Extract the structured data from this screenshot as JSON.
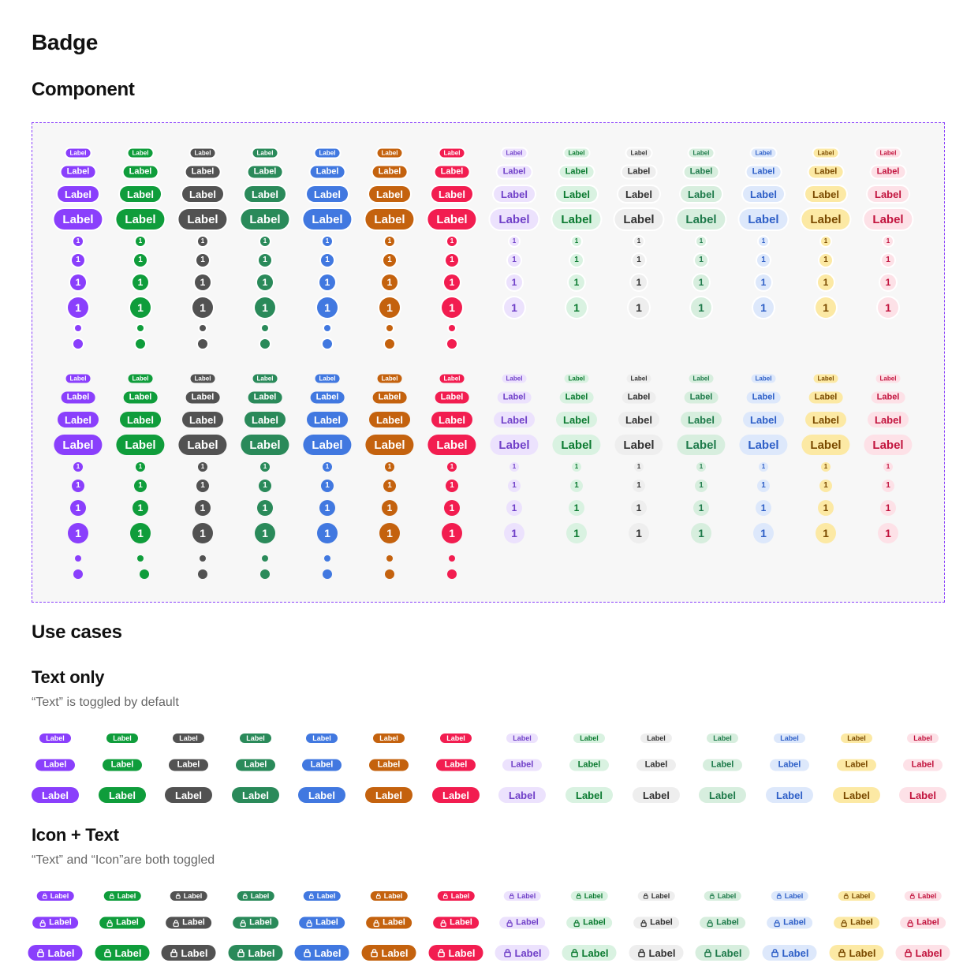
{
  "headings": {
    "title": "Badge",
    "component": "Component",
    "use_cases": "Use cases",
    "text_only": "Text only",
    "text_only_note": "“Text” is toggled by default",
    "icon_text": "Icon + Text",
    "icon_text_note": "“Text” and “Icon”are both toggled"
  },
  "badge": {
    "label": "Label",
    "count": "1",
    "icon": "lock-icon"
  },
  "colors": [
    {
      "name": "purple",
      "bg": "#8a3ffc",
      "fg": "#ffffff"
    },
    {
      "name": "green",
      "bg": "#0f9d3b",
      "fg": "#ffffff"
    },
    {
      "name": "gray",
      "bg": "#525252",
      "fg": "#ffffff"
    },
    {
      "name": "teal",
      "bg": "#2a8a5a",
      "fg": "#ffffff"
    },
    {
      "name": "blue",
      "bg": "#4178e0",
      "fg": "#ffffff"
    },
    {
      "name": "orange",
      "bg": "#c4620e",
      "fg": "#ffffff"
    },
    {
      "name": "red",
      "bg": "#f21d50",
      "fg": "#ffffff"
    },
    {
      "name": "purple-soft",
      "bg": "#ece2fd",
      "fg": "#7040c8"
    },
    {
      "name": "green-soft",
      "bg": "#d9f2e1",
      "fg": "#0b7a30"
    },
    {
      "name": "gray-soft",
      "bg": "#eeeeee",
      "fg": "#333333"
    },
    {
      "name": "teal-soft",
      "bg": "#d7eede",
      "fg": "#1e7a4a"
    },
    {
      "name": "blue-soft",
      "bg": "#dde8fb",
      "fg": "#2e5fc7"
    },
    {
      "name": "yellow-soft",
      "bg": "#fce9a4",
      "fg": "#7a4a00"
    },
    {
      "name": "red-soft",
      "bg": "#fde1e7",
      "fg": "#c2143e"
    }
  ],
  "component_variants": [
    "with-outline",
    "without-outline"
  ],
  "component_sizes": [
    "xs",
    "sm",
    "md",
    "lg"
  ],
  "dot_sizes": [
    "sm",
    "lg"
  ]
}
